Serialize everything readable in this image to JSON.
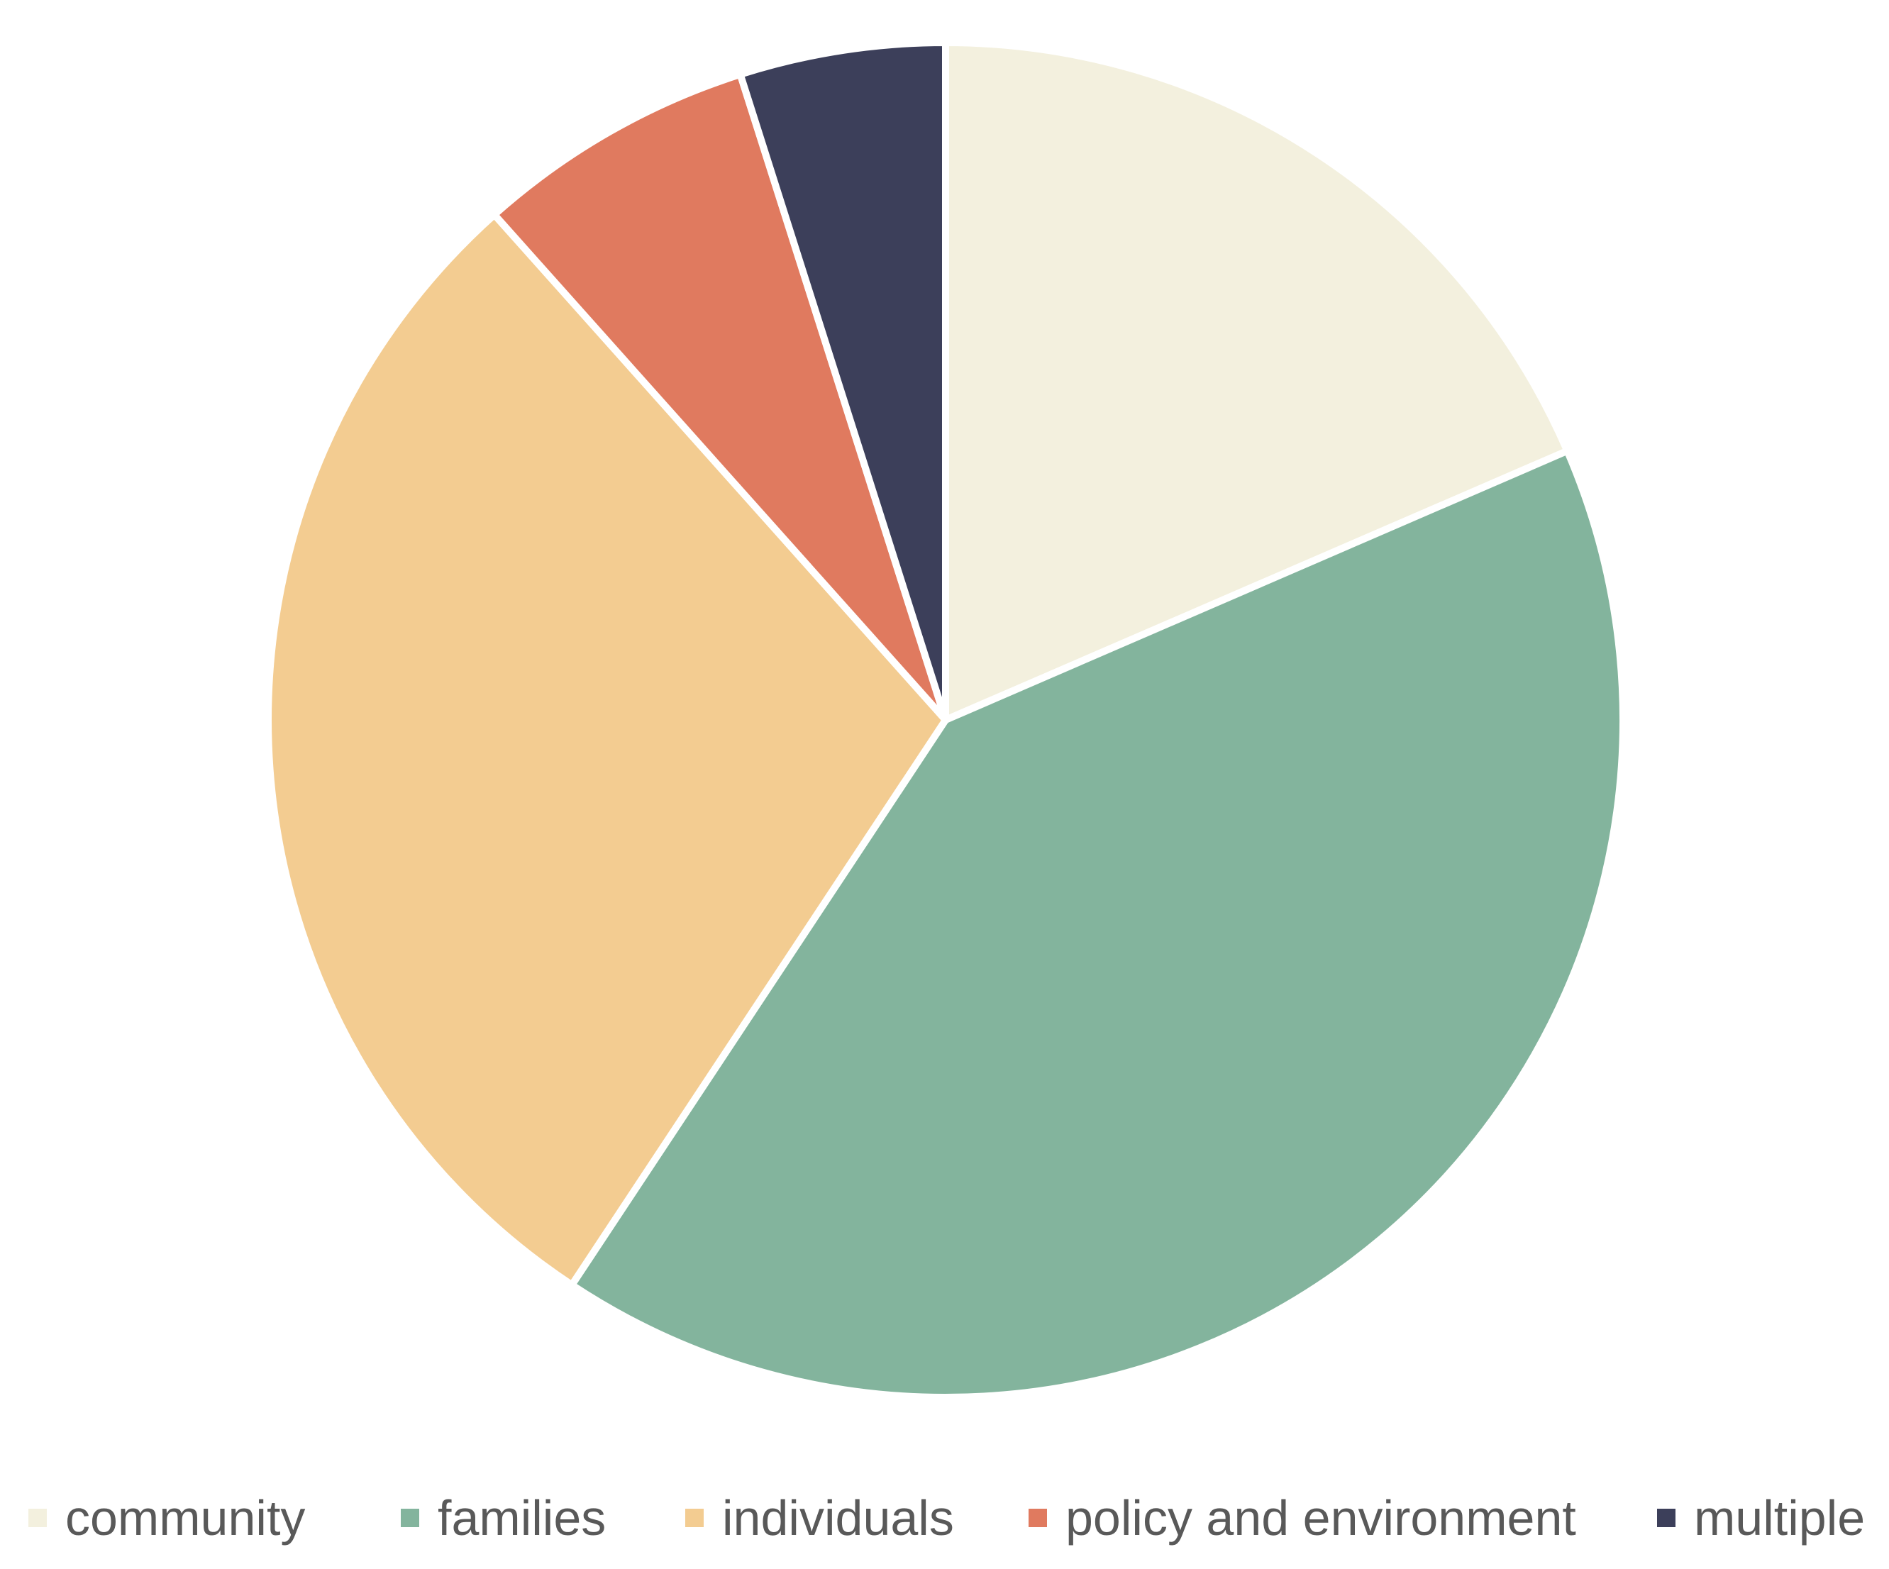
{
  "chart_data": {
    "type": "pie",
    "categories": [
      "community",
      "families",
      "individuals",
      "policy and environment",
      "multiple"
    ],
    "values": [
      18.5,
      40.8,
      29.1,
      6.7,
      4.9
    ],
    "unit": "%",
    "colors": [
      "#F3F0DE",
      "#83B49D",
      "#F3CC91",
      "#E07A5F",
      "#3C3F5A"
    ],
    "start_angle": "12 o'clock",
    "direction": "clockwise",
    "legend_position": "bottom",
    "title": ""
  }
}
